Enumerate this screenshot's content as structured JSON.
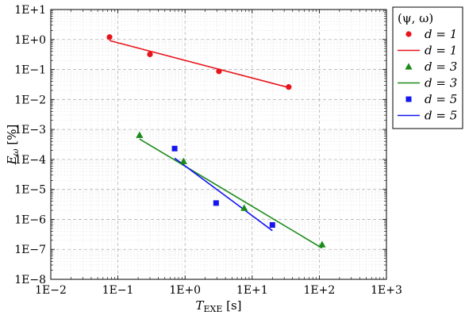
{
  "chart_data": {
    "type": "scatter",
    "x_scale": "log",
    "y_scale": "log",
    "xlim": [
      0.01,
      1000
    ],
    "ylim": [
      1e-08,
      10
    ],
    "grid": true,
    "legend_placement": "outside-right",
    "xlabel": {
      "main": "T",
      "sub": "EXE",
      "unit": " [s]"
    },
    "ylabel": {
      "main": "E",
      "sub": "ω",
      "unit": " [%]"
    },
    "x_ticks": [
      {
        "value": 0.01,
        "label": "1E−2"
      },
      {
        "value": 0.1,
        "label": "1E−1"
      },
      {
        "value": 1,
        "label": "1E+0"
      },
      {
        "value": 10,
        "label": "1E+1"
      },
      {
        "value": 100,
        "label": "1E+2"
      },
      {
        "value": 1000,
        "label": "1E+3"
      }
    ],
    "y_ticks": [
      {
        "value": 1e-08,
        "label": "1E−8"
      },
      {
        "value": 1e-07,
        "label": "1E−7"
      },
      {
        "value": 1e-06,
        "label": "1E−6"
      },
      {
        "value": 1e-05,
        "label": "1E−5"
      },
      {
        "value": 0.0001,
        "label": "1E−4"
      },
      {
        "value": 0.001,
        "label": "1E−3"
      },
      {
        "value": 0.01,
        "label": "1E−2"
      },
      {
        "value": 0.1,
        "label": "1E−1"
      },
      {
        "value": 1,
        "label": "1E+0"
      },
      {
        "value": 10,
        "label": "1E+1"
      }
    ],
    "legend_title": "(ψ, ω)",
    "series": [
      {
        "name": "d = 1",
        "kind": "points",
        "marker": "circle",
        "color": "#e8141b",
        "x": [
          0.075,
          0.3,
          3.2,
          35
        ],
        "y": [
          1.2,
          0.32,
          0.087,
          0.026
        ]
      },
      {
        "name": "d = 1",
        "kind": "line",
        "color": "#e8141b",
        "x": [
          0.075,
          35
        ],
        "y": [
          0.92,
          0.025
        ]
      },
      {
        "name": "d = 3",
        "kind": "points",
        "marker": "triangle",
        "color": "#1a8a1a",
        "x": [
          0.21,
          0.95,
          7.6,
          110
        ],
        "y": [
          0.00065,
          8.7e-05,
          2.4e-06,
          1.45e-07
        ]
      },
      {
        "name": "d = 3",
        "kind": "line",
        "color": "#1a8a1a",
        "x": [
          0.21,
          110
        ],
        "y": [
          0.00048,
          1.1e-07
        ]
      },
      {
        "name": "d = 5",
        "kind": "points",
        "marker": "square",
        "color": "#1515f0",
        "x": [
          0.7,
          2.9,
          20
        ],
        "y": [
          0.00023,
          3.5e-06,
          6.5e-07
        ]
      },
      {
        "name": "d = 5",
        "kind": "line",
        "color": "#1515f0",
        "x": [
          0.7,
          20
        ],
        "y": [
          0.00011,
          4.2e-07
        ]
      }
    ]
  }
}
